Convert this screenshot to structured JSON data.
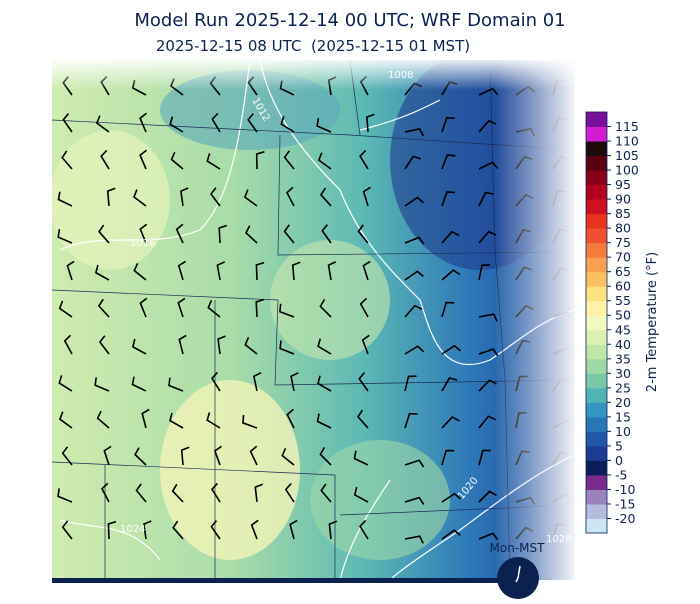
{
  "title": "Model Run 2025-12-14 00 UTC; WRF Domain 01",
  "subtitle": "2025-12-15 08 UTC  (2025-12-15 01 MST)",
  "isobar_labels": [
    "1008",
    "1012",
    "1016",
    "1020",
    "1024",
    "1028"
  ],
  "clock_label": "Mon-MST",
  "colorbar": {
    "label": "2-m Temperature (°F)",
    "clim": [
      -25,
      120
    ],
    "ticks": [
      115,
      110,
      105,
      100,
      95,
      90,
      85,
      80,
      75,
      70,
      65,
      60,
      55,
      50,
      45,
      40,
      35,
      30,
      25,
      20,
      15,
      10,
      5,
      0,
      -5,
      -10,
      -15,
      -20
    ],
    "colors": [
      "#cce6f4",
      "#b4bcdc",
      "#9a82bc",
      "#7a2a8a",
      "#0a1e5a",
      "#1c3c94",
      "#2258a8",
      "#2878b8",
      "#3296c0",
      "#4fb4b4",
      "#78c8a8",
      "#9fd8a4",
      "#c0e6a8",
      "#dcf0b4",
      "#f2f8c0",
      "#fff2a8",
      "#fde080",
      "#fbc060",
      "#f8a050",
      "#f57a3c",
      "#f05030",
      "#e8341e",
      "#d0101e",
      "#b0001e",
      "#8b0019",
      "#5a0010",
      "#1a0a0a",
      "#d21ed2",
      "#7a0f9c"
    ]
  }
}
